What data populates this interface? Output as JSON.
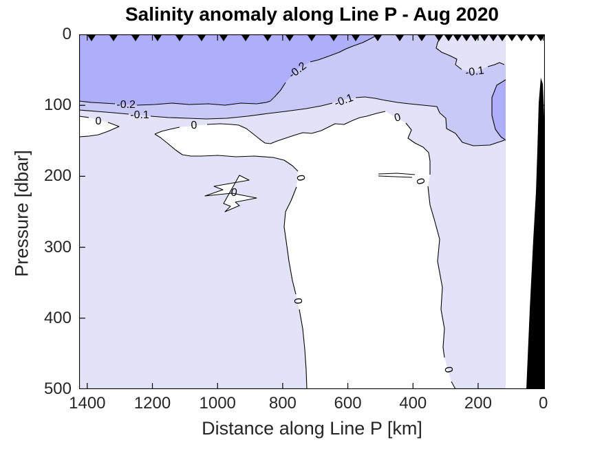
{
  "chart_data": {
    "type": "filled-contour-section",
    "title": "Salinity anomaly along Line P - Aug 2020",
    "xlabel": "Distance along Line P [km]",
    "ylabel": "Pressure [dbar]",
    "x_ticks": [
      1400,
      1200,
      1000,
      800,
      600,
      400,
      200,
      0
    ],
    "y_ticks": [
      0,
      100,
      200,
      300,
      400,
      500
    ],
    "xlim": [
      1425,
      -5
    ],
    "x_direction": "reversed",
    "ylim": [
      0,
      500
    ],
    "y_direction": "reversed-depth",
    "grid": false,
    "contour_levels": [
      -0.2,
      -0.1,
      0
    ],
    "bands": [
      {
        "range": "> 0",
        "color": "#ffffff"
      },
      {
        "range": "-0.1 to 0",
        "color": "#e2e2f8"
      },
      {
        "range": "-0.2 to -0.1",
        "color": "#c9c9f7"
      },
      {
        "range": "< -0.2",
        "color": "#aeaefa"
      }
    ],
    "contour_line_color": "#000000",
    "land_mask_color": "#000000",
    "data_gap_color": "#ffffff",
    "station_marker_shape": "filled downward triangle",
    "station_markers_km": [
      1387,
      1319,
      1252,
      1184,
      1117,
      1049,
      981,
      914,
      846,
      779,
      711,
      643,
      576,
      508,
      441,
      373,
      320,
      291,
      263,
      236,
      208,
      181,
      153,
      126,
      96,
      67,
      37,
      8
    ],
    "contour_labels": [
      {
        "text": "-0.2",
        "value": -0.2,
        "km": 1281,
        "dbar": 100,
        "rot": 0
      },
      {
        "text": "-0.1",
        "value": -0.1,
        "km": 1239,
        "dbar": 114,
        "rot": 0
      },
      {
        "text": "0",
        "value": 0,
        "km": 1366,
        "dbar": 123,
        "rot": 0
      },
      {
        "text": "0",
        "value": 0,
        "km": 1072,
        "dbar": 129,
        "rot": -3
      },
      {
        "text": "-0.2",
        "value": -0.2,
        "km": 753,
        "dbar": 51,
        "rot": -38
      },
      {
        "text": "-0.1",
        "value": -0.1,
        "km": 612,
        "dbar": 94,
        "rot": -20
      },
      {
        "text": "-0.1",
        "value": -0.1,
        "km": 210,
        "dbar": 53,
        "rot": -8
      },
      {
        "text": "0",
        "value": 0,
        "km": 447,
        "dbar": 118,
        "rot": -15
      },
      {
        "text": "0",
        "value": 0,
        "km": 950,
        "dbar": 224,
        "rot": 10
      },
      {
        "text": "0",
        "value": 0,
        "km": 747,
        "dbar": 203,
        "rot": 80
      },
      {
        "text": "0",
        "value": 0,
        "km": 379,
        "dbar": 207,
        "rot": 75
      },
      {
        "text": "0",
        "value": 0,
        "km": 755,
        "dbar": 376,
        "rot": 85
      },
      {
        "text": "0",
        "value": 0,
        "km": 293,
        "dbar": 473,
        "rot": 80
      }
    ]
  }
}
